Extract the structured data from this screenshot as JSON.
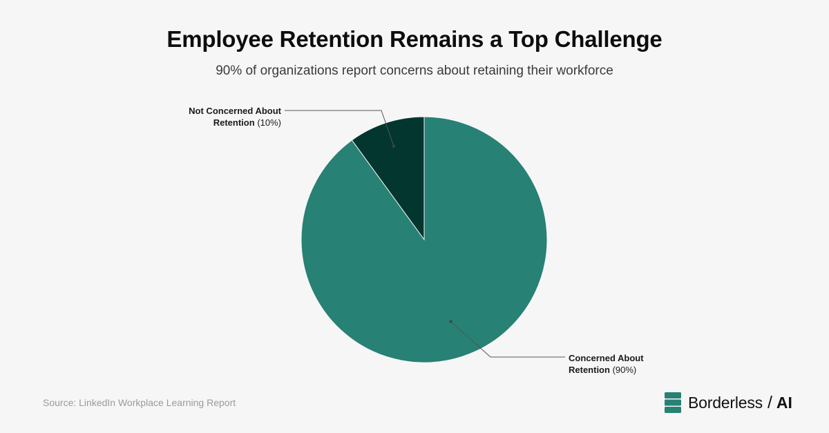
{
  "header": {
    "title": "Employee Retention Remains a Top Challenge",
    "subtitle": "90% of organizations report concerns about retaining their workforce"
  },
  "chart_data": {
    "type": "pie",
    "slices": [
      {
        "name_line1": "Not Concerned About",
        "name_line2": "Retention",
        "pct_label": "(10%)",
        "value": 10,
        "color": "#03362f"
      },
      {
        "name_line1": "Concerned About",
        "name_line2": "Retention",
        "pct_label": "(90%)",
        "value": 90,
        "color": "#278174"
      }
    ],
    "start_angle": "12 o'clock",
    "direction": "counter-clockwise",
    "leader_color": "#555555"
  },
  "footer": {
    "source": "Source: LinkedIn Workplace Learning Report",
    "brand_name": "Borderless",
    "brand_separator": "/",
    "brand_suffix": "AI",
    "brand_color": "#278174"
  }
}
